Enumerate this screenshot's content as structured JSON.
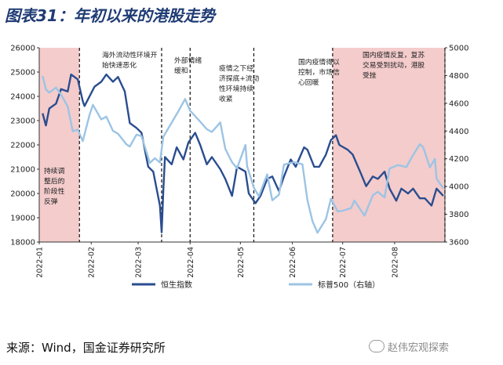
{
  "title": "图表31：年初以来的港股走势",
  "source": "来源：Wind，国金证券研究所",
  "watermark": "赵伟宏观探索",
  "chart_data": {
    "type": "line",
    "dual_axis": true,
    "y_left": {
      "min": 18000,
      "max": 26000,
      "ticks": [
        18000,
        19000,
        20000,
        21000,
        22000,
        23000,
        24000,
        25000,
        26000
      ]
    },
    "y_right": {
      "min": 3600,
      "max": 5000,
      "ticks": [
        3600,
        3800,
        4000,
        4200,
        4400,
        4600,
        4800,
        5000
      ]
    },
    "x_range": [
      "2022-01-01",
      "2022-08-31"
    ],
    "x_ticks": [
      "2022-01",
      "2022-02",
      "2022-03",
      "2022-04",
      "2022-05",
      "2022-06",
      "2022-07",
      "2022-08"
    ],
    "series": [
      {
        "name": "恒生指数",
        "axis": "left",
        "color": "#2a4d8f",
        "points": [
          [
            "2022-01-03",
            23300
          ],
          [
            "2022-01-05",
            22800
          ],
          [
            "2022-01-07",
            23500
          ],
          [
            "2022-01-11",
            23700
          ],
          [
            "2022-01-14",
            24300
          ],
          [
            "2022-01-18",
            24200
          ],
          [
            "2022-01-20",
            24900
          ],
          [
            "2022-01-24",
            24700
          ],
          [
            "2022-01-27",
            23800
          ],
          [
            "2022-01-28",
            23600
          ],
          [
            "2022-02-03",
            24400
          ],
          [
            "2022-02-07",
            24600
          ],
          [
            "2022-02-10",
            24900
          ],
          [
            "2022-02-14",
            24600
          ],
          [
            "2022-02-17",
            24800
          ],
          [
            "2022-02-21",
            24200
          ],
          [
            "2022-02-24",
            22900
          ],
          [
            "2022-02-28",
            22700
          ],
          [
            "2022-03-03",
            22500
          ],
          [
            "2022-03-07",
            21100
          ],
          [
            "2022-03-10",
            20900
          ],
          [
            "2022-03-14",
            19500
          ],
          [
            "2022-03-15",
            18400
          ],
          [
            "2022-03-16",
            20100
          ],
          [
            "2022-03-17",
            21500
          ],
          [
            "2022-03-21",
            21200
          ],
          [
            "2022-03-24",
            21900
          ],
          [
            "2022-03-28",
            21400
          ],
          [
            "2022-03-31",
            22100
          ],
          [
            "2022-04-04",
            22500
          ],
          [
            "2022-04-07",
            22000
          ],
          [
            "2022-04-11",
            21200
          ],
          [
            "2022-04-14",
            21500
          ],
          [
            "2022-04-19",
            21000
          ],
          [
            "2022-04-22",
            20600
          ],
          [
            "2022-04-26",
            19900
          ],
          [
            "2022-04-29",
            21100
          ],
          [
            "2022-05-04",
            20900
          ],
          [
            "2022-05-06",
            20000
          ],
          [
            "2022-05-10",
            19600
          ],
          [
            "2022-05-13",
            19900
          ],
          [
            "2022-05-17",
            20600
          ],
          [
            "2022-05-20",
            20700
          ],
          [
            "2022-05-24",
            20100
          ],
          [
            "2022-05-27",
            20700
          ],
          [
            "2022-05-31",
            21400
          ],
          [
            "2022-06-03",
            21100
          ],
          [
            "2022-06-08",
            21900
          ],
          [
            "2022-06-10",
            21800
          ],
          [
            "2022-06-14",
            21100
          ],
          [
            "2022-06-17",
            21100
          ],
          [
            "2022-06-21",
            21600
          ],
          [
            "2022-06-24",
            22200
          ],
          [
            "2022-06-27",
            22400
          ],
          [
            "2022-06-29",
            22000
          ],
          [
            "2022-07-04",
            21800
          ],
          [
            "2022-07-07",
            21600
          ],
          [
            "2022-07-12",
            20800
          ],
          [
            "2022-07-15",
            20300
          ],
          [
            "2022-07-19",
            20700
          ],
          [
            "2022-07-22",
            20600
          ],
          [
            "2022-07-26",
            20900
          ],
          [
            "2022-07-29",
            20200
          ],
          [
            "2022-08-02",
            19700
          ],
          [
            "2022-08-05",
            20200
          ],
          [
            "2022-08-09",
            20000
          ],
          [
            "2022-08-12",
            20200
          ],
          [
            "2022-08-16",
            19800
          ],
          [
            "2022-08-19",
            19800
          ],
          [
            "2022-08-23",
            19500
          ],
          [
            "2022-08-26",
            20200
          ],
          [
            "2022-08-30",
            19900
          ]
        ]
      },
      {
        "name": "标普500（右轴）",
        "axis": "right",
        "color": "#9cc4e4",
        "points": [
          [
            "2022-01-03",
            4796
          ],
          [
            "2022-01-05",
            4700
          ],
          [
            "2022-01-07",
            4677
          ],
          [
            "2022-01-11",
            4713
          ],
          [
            "2022-01-14",
            4662
          ],
          [
            "2022-01-18",
            4577
          ],
          [
            "2022-01-21",
            4398
          ],
          [
            "2022-01-24",
            4410
          ],
          [
            "2022-01-27",
            4327
          ],
          [
            "2022-01-31",
            4516
          ],
          [
            "2022-02-02",
            4589
          ],
          [
            "2022-02-07",
            4484
          ],
          [
            "2022-02-10",
            4504
          ],
          [
            "2022-02-14",
            4401
          ],
          [
            "2022-02-17",
            4380
          ],
          [
            "2022-02-22",
            4304
          ],
          [
            "2022-02-24",
            4288
          ],
          [
            "2022-02-28",
            4374
          ],
          [
            "2022-03-03",
            4363
          ],
          [
            "2022-03-08",
            4170
          ],
          [
            "2022-03-11",
            4204
          ],
          [
            "2022-03-14",
            4173
          ],
          [
            "2022-03-16",
            4358
          ],
          [
            "2022-03-21",
            4461
          ],
          [
            "2022-03-25",
            4543
          ],
          [
            "2022-03-29",
            4631
          ],
          [
            "2022-04-01",
            4546
          ],
          [
            "2022-04-06",
            4481
          ],
          [
            "2022-04-11",
            4413
          ],
          [
            "2022-04-14",
            4393
          ],
          [
            "2022-04-19",
            4462
          ],
          [
            "2022-04-22",
            4272
          ],
          [
            "2022-04-26",
            4175
          ],
          [
            "2022-04-29",
            4132
          ],
          [
            "2022-05-04",
            4300
          ],
          [
            "2022-05-05",
            4147
          ],
          [
            "2022-05-09",
            3991
          ],
          [
            "2022-05-12",
            3930
          ],
          [
            "2022-05-17",
            4088
          ],
          [
            "2022-05-20",
            3901
          ],
          [
            "2022-05-24",
            3941
          ],
          [
            "2022-05-27",
            4158
          ],
          [
            "2022-06-02",
            4176
          ],
          [
            "2022-06-07",
            4160
          ],
          [
            "2022-06-10",
            3901
          ],
          [
            "2022-06-13",
            3750
          ],
          [
            "2022-06-16",
            3667
          ],
          [
            "2022-06-21",
            3765
          ],
          [
            "2022-06-24",
            3912
          ],
          [
            "2022-06-28",
            3821
          ],
          [
            "2022-07-01",
            3825
          ],
          [
            "2022-07-06",
            3845
          ],
          [
            "2022-07-08",
            3899
          ],
          [
            "2022-07-14",
            3790
          ],
          [
            "2022-07-19",
            3937
          ],
          [
            "2022-07-22",
            3962
          ],
          [
            "2022-07-26",
            3921
          ],
          [
            "2022-07-29",
            4130
          ],
          [
            "2022-08-03",
            4155
          ],
          [
            "2022-08-08",
            4140
          ],
          [
            "2022-08-11",
            4207
          ],
          [
            "2022-08-16",
            4305
          ],
          [
            "2022-08-18",
            4284
          ],
          [
            "2022-08-22",
            4138
          ],
          [
            "2022-08-25",
            4199
          ],
          [
            "2022-08-26",
            4058
          ],
          [
            "2022-08-30",
            3986
          ]
        ]
      }
    ],
    "shaded_regions": [
      {
        "start": "2022-01-01",
        "end": "2022-01-25",
        "color": "#f4cccc"
      },
      {
        "start": "2022-06-25",
        "end": "2022-08-31",
        "color": "#f4cccc"
      }
    ],
    "dividers": [
      "2022-01-25",
      "2022-03-15",
      "2022-04-01",
      "2022-05-09",
      "2022-06-25",
      "2022-08-31"
    ],
    "annotations": [
      {
        "id": "a1",
        "lines": [
          "持续调",
          "整后的",
          "阶段性",
          "反弹"
        ]
      },
      {
        "id": "a2",
        "lines": [
          "海外流动性环境开",
          "始快速恶化"
        ]
      },
      {
        "id": "a3",
        "lines": [
          "外部情绪",
          "缓和"
        ]
      },
      {
        "id": "a4",
        "lines": [
          "疫情之下经",
          "济探底+流动",
          "性环境持续",
          "收紧"
        ]
      },
      {
        "id": "a5",
        "lines": [
          "国内疫情得以",
          "控制，市场信",
          "心回暖"
        ]
      },
      {
        "id": "a6",
        "lines": [
          "国内疫情反复，复苏",
          "交易受到扰动，港股",
          "受挫"
        ]
      }
    ],
    "legend_position": "bottom"
  }
}
